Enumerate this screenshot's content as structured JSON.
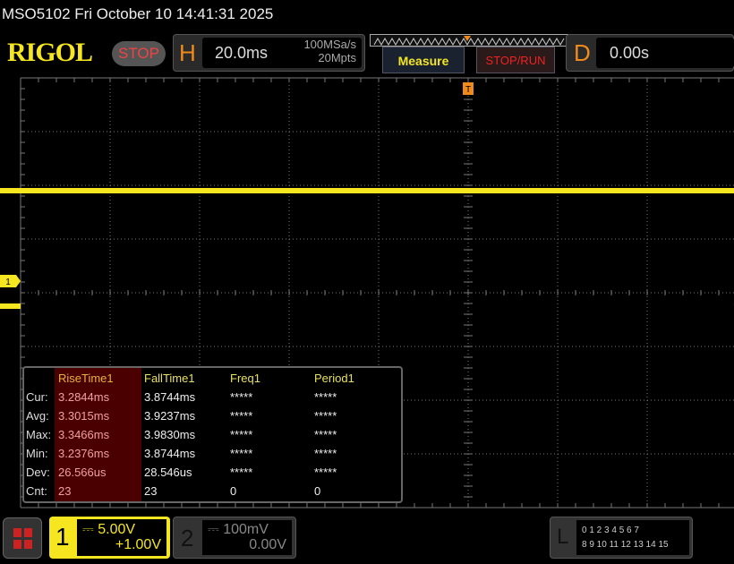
{
  "header": {
    "title": "MSO5102  Fri October 10 14:41:31 2025",
    "logo": "RIGOL",
    "run_state": "STOP",
    "horizontal": {
      "label": "H",
      "timebase": "20.0ms",
      "sample_rate": "100MSa/s",
      "memory_depth": "20Mpts"
    },
    "measure_button": "Measure",
    "stop_run_button": "STOP/RUN",
    "delay": {
      "label": "D",
      "value": "0.00s"
    }
  },
  "waveform": {
    "channel_marker": "1",
    "color": "#f5e620",
    "low_level_div": -0.25,
    "high_level_div": 1.9,
    "rise_start_div": -6.88,
    "fall_start_div": 3.75
  },
  "measurements": {
    "columns": [
      "RiseTime1",
      "FallTime1",
      "Freq1",
      "Period1"
    ],
    "rows": [
      {
        "label": "Cur:",
        "values": [
          "3.2844ms",
          "3.8744ms",
          "*****",
          "*****"
        ]
      },
      {
        "label": "Avg:",
        "values": [
          "3.3015ms",
          "3.9237ms",
          "*****",
          "*****"
        ]
      },
      {
        "label": "Max:",
        "values": [
          "3.3466ms",
          "3.9830ms",
          "*****",
          "*****"
        ]
      },
      {
        "label": "Min:",
        "values": [
          "3.2376ms",
          "3.8744ms",
          "*****",
          "*****"
        ]
      },
      {
        "label": "Dev:",
        "values": [
          "26.566us",
          "28.546us",
          "*****",
          "*****"
        ]
      },
      {
        "label": "Cnt:",
        "values": [
          "23",
          "23",
          "0",
          "0"
        ]
      }
    ]
  },
  "channels": [
    {
      "number": "1",
      "scale": "5.00V",
      "offset": "+1.00V",
      "color": "#f5e620"
    },
    {
      "number": "2",
      "scale": "100mV",
      "offset": "0.00V",
      "color": "#888888"
    }
  ],
  "logic": {
    "label": "L",
    "row1": "0 1 2 3  4 5 6 7",
    "row2": "8 9 10 11 12 13 14 15"
  }
}
